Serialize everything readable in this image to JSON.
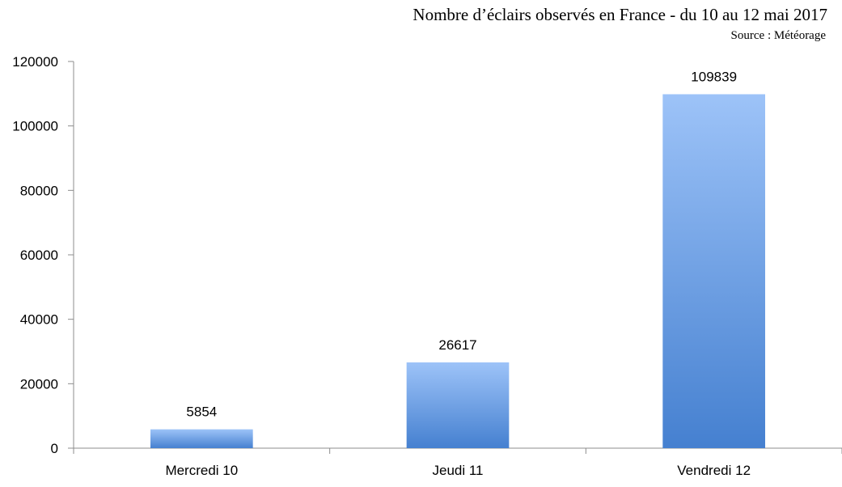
{
  "chart_data": {
    "type": "bar",
    "title": "Nombre d’éclairs observés en France - du 10 au 12 mai 2017",
    "subtitle": "Source : Météorage",
    "categories": [
      "Mercredi 10",
      "Jeudi 11",
      "Vendredi 12"
    ],
    "values": [
      5854,
      26617,
      109839
    ],
    "data_labels": [
      "5854",
      "26617",
      "109839"
    ],
    "yticks": [
      "0",
      "20000",
      "40000",
      "60000",
      "80000",
      "100000",
      "120000"
    ],
    "ylim": [
      0,
      120000
    ],
    "xlabel": "",
    "ylabel": "",
    "grid": false,
    "legend": "none",
    "colors": {
      "bar_top": "#9DC3F8",
      "bar_bottom": "#4580D0",
      "axis": "#8c8c8c"
    }
  }
}
